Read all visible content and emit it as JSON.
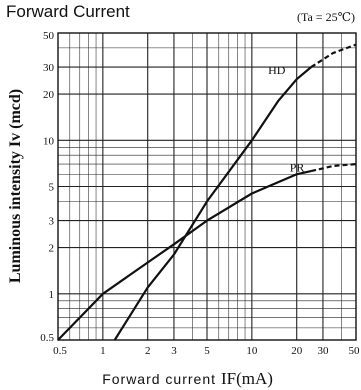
{
  "chart_data": {
    "type": "line",
    "title": "Forward Current",
    "condition": "(Ta = 25℃)",
    "xlabel_text": "Forward current",
    "xlabel_symbol": "IF(mA)",
    "ylabel": "Luminous intensity Iv (mcd)",
    "xscale": "log",
    "yscale": "log",
    "xlim": [
      0.5,
      50
    ],
    "ylim": [
      0.5,
      50
    ],
    "grid": true,
    "x_ticks": [
      {
        "value": 0.5,
        "label": "0.5"
      },
      {
        "value": 1,
        "label": "1"
      },
      {
        "value": 2,
        "label": "2"
      },
      {
        "value": 3,
        "label": "3"
      },
      {
        "value": 5,
        "label": "5"
      },
      {
        "value": 10,
        "label": "10"
      },
      {
        "value": 20,
        "label": "20"
      },
      {
        "value": 30,
        "label": "30"
      },
      {
        "value": 50,
        "label": "50"
      }
    ],
    "y_ticks": [
      {
        "value": 0.5,
        "label": "0.5"
      },
      {
        "value": 1,
        "label": "1"
      },
      {
        "value": 2,
        "label": "2"
      },
      {
        "value": 3,
        "label": "3"
      },
      {
        "value": 5,
        "label": "5"
      },
      {
        "value": 10,
        "label": "10"
      },
      {
        "value": 20,
        "label": "20"
      },
      {
        "value": 30,
        "label": "30"
      },
      {
        "value": 50,
        "label": "50"
      }
    ],
    "series": [
      {
        "name": "HD",
        "points": [
          [
            1.2,
            0.5
          ],
          [
            2,
            1.1
          ],
          [
            3,
            1.8
          ],
          [
            5,
            4.0
          ],
          [
            10,
            10.0
          ],
          [
            15,
            18
          ],
          [
            20,
            25
          ],
          [
            25,
            30
          ]
        ],
        "dashed_points": [
          [
            25,
            30
          ],
          [
            35,
            37
          ],
          [
            50,
            42
          ]
        ]
      },
      {
        "name": "PR",
        "points": [
          [
            0.5,
            0.5
          ],
          [
            1,
            1.0
          ],
          [
            2,
            1.6
          ],
          [
            3,
            2.1
          ],
          [
            5,
            3.0
          ],
          [
            10,
            4.5
          ],
          [
            20,
            6.0
          ],
          [
            25,
            6.3
          ]
        ],
        "dashed_points": [
          [
            25,
            6.3
          ],
          [
            35,
            6.8
          ],
          [
            50,
            7.0
          ]
        ]
      }
    ]
  }
}
